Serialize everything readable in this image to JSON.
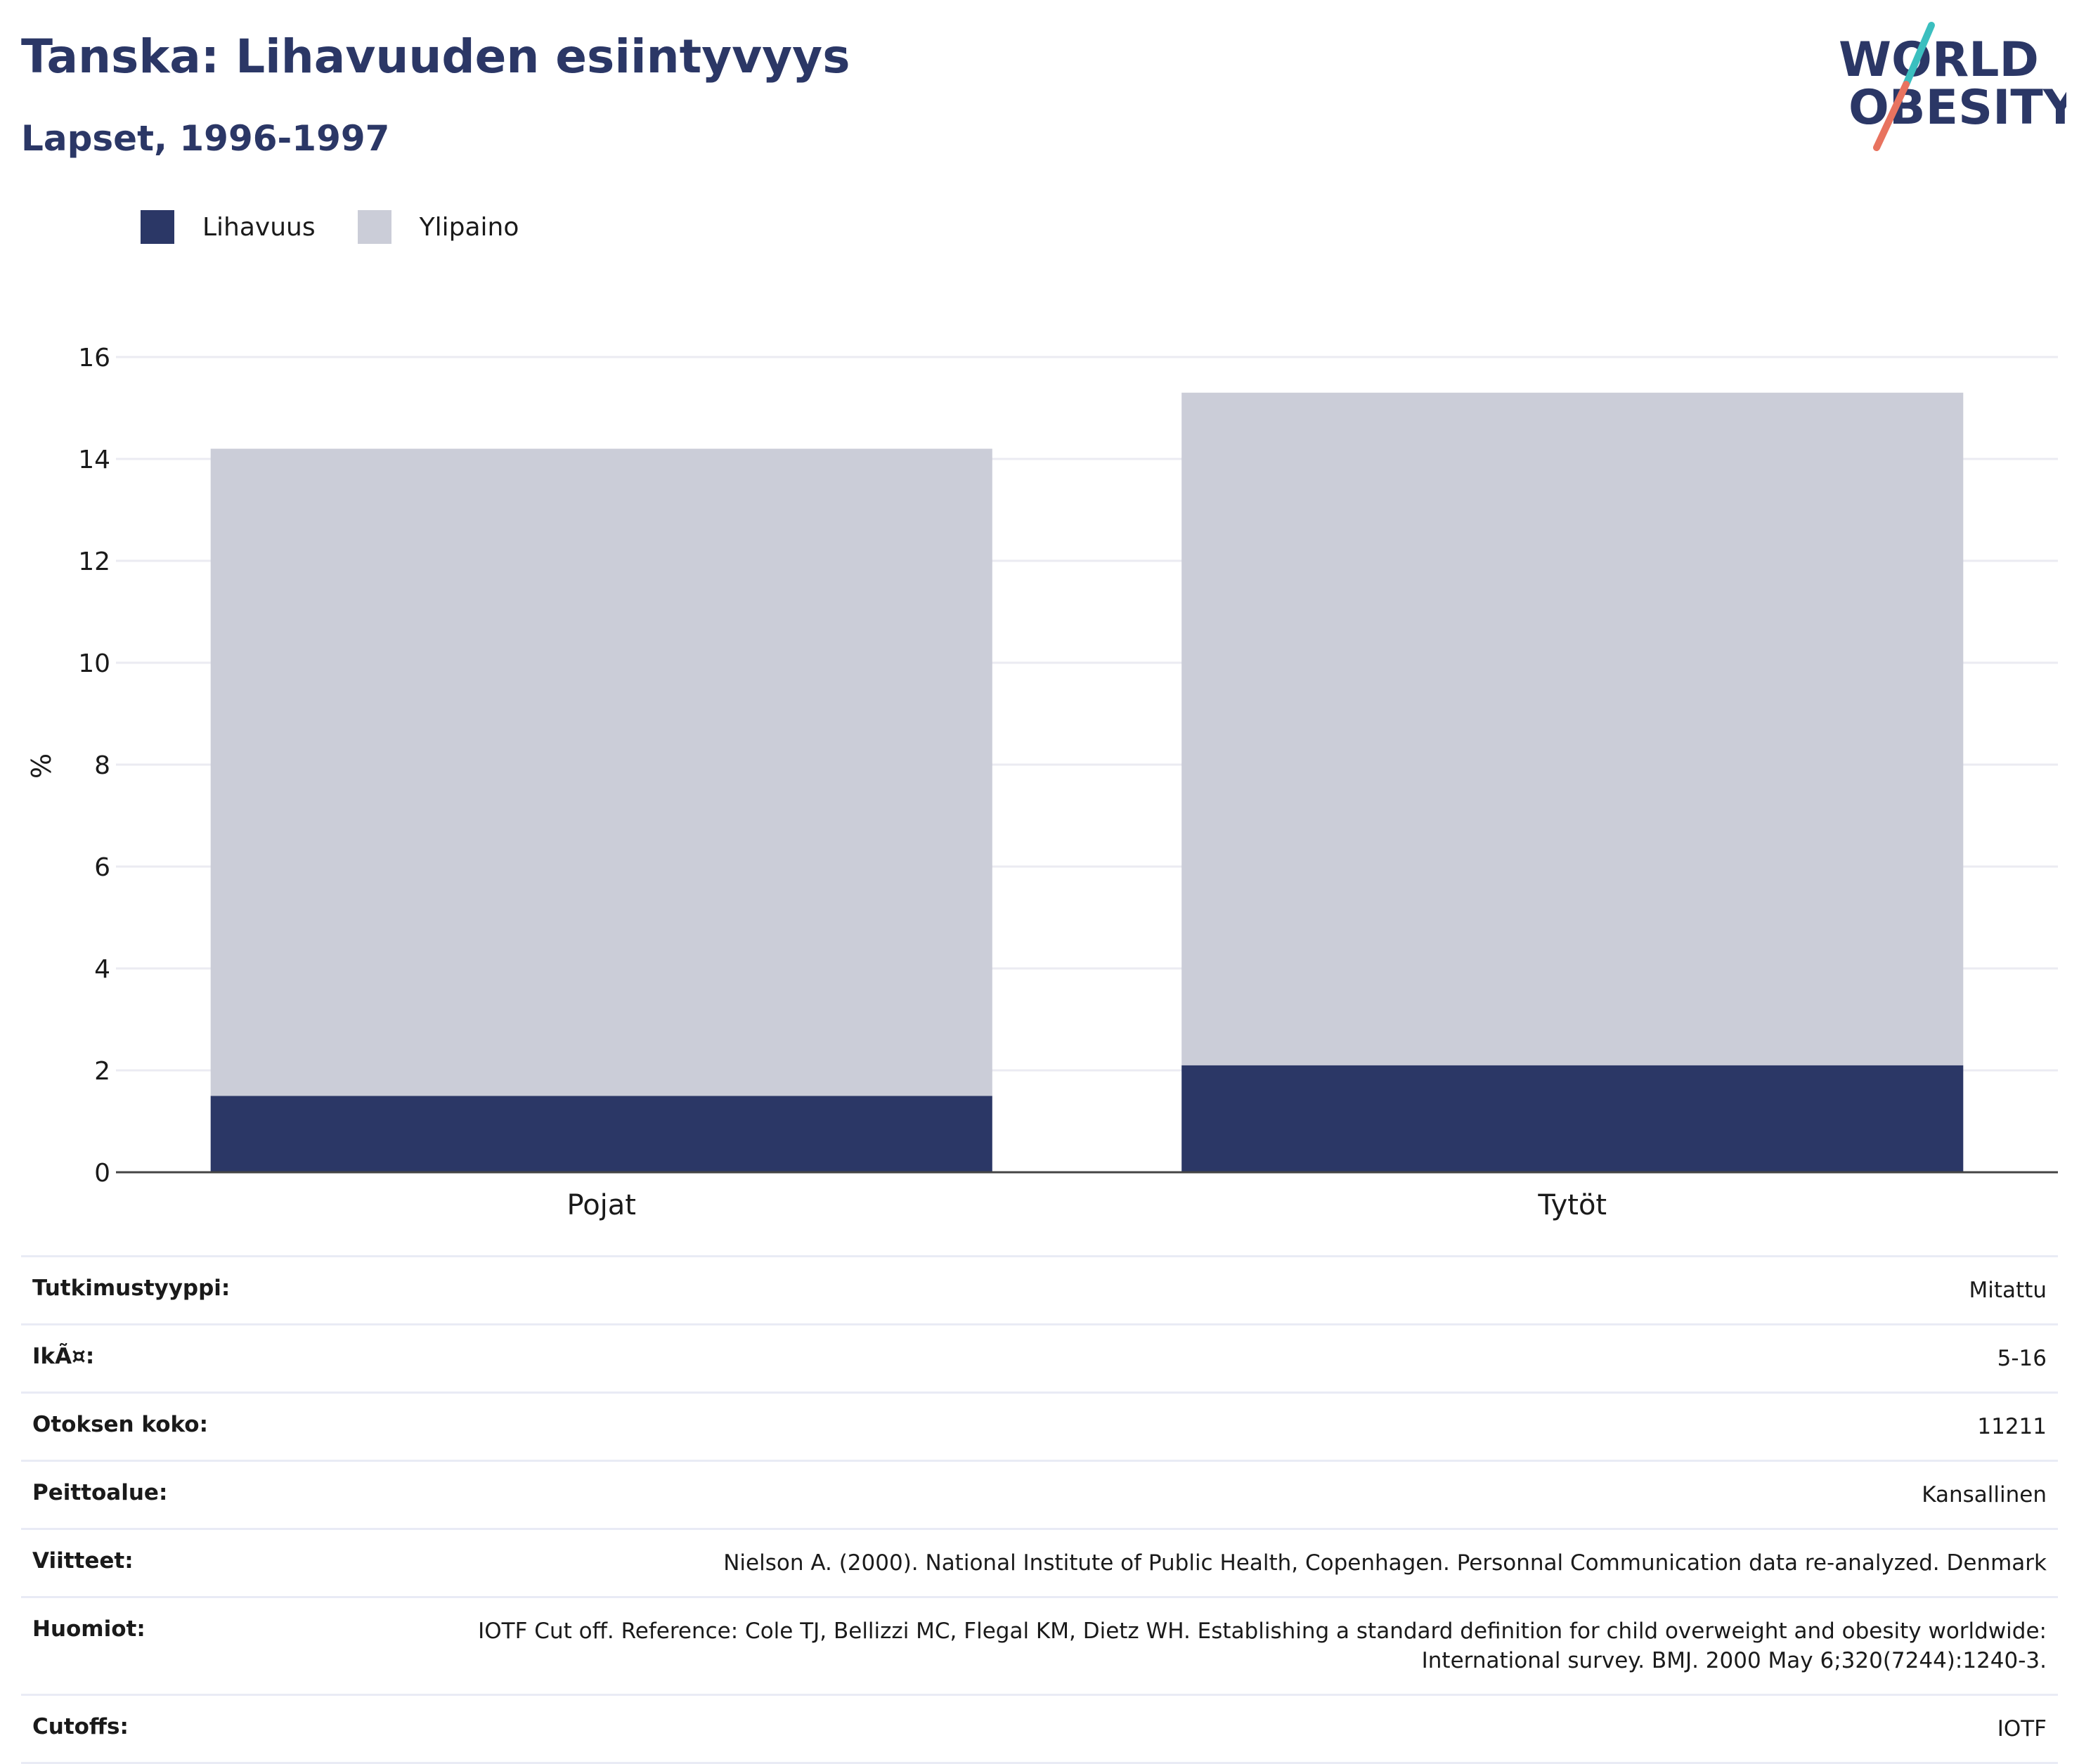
{
  "header": {
    "title": "Tanska: Lihavuuden esiintyvyys",
    "subtitle": "Lapset, 1996-1997"
  },
  "logo": {
    "line1": "WORLD",
    "line2": "OBESITY",
    "colors": {
      "navy": "#2b3766",
      "teal": "#3bbfbf",
      "coral": "#e8735f"
    }
  },
  "legend": [
    {
      "label": "Lihavuus",
      "color": "#2b3766"
    },
    {
      "label": "Ylipaino",
      "color": "#cbcdd8"
    }
  ],
  "chart_data": {
    "type": "bar",
    "stacked": true,
    "categories": [
      "Pojat",
      "Tytöt"
    ],
    "series": [
      {
        "name": "Lihavuus",
        "values": [
          1.5,
          2.1
        ],
        "color": "#2b3766"
      },
      {
        "name": "Ylipaino",
        "values": [
          12.7,
          13.2
        ],
        "color": "#cbcdd8"
      }
    ],
    "ylabel": "%",
    "ylim": [
      0,
      16
    ],
    "yticks": [
      0,
      2,
      4,
      6,
      8,
      10,
      12,
      14,
      16
    ],
    "grid": true,
    "legend_position": "top-left"
  },
  "info": [
    {
      "label": "Tutkimustyyppi:",
      "value": "Mitattu"
    },
    {
      "label": "IkÃ¤:",
      "value": "5-16"
    },
    {
      "label": "Otoksen koko:",
      "value": "11211"
    },
    {
      "label": "Peittoalue:",
      "value": "Kansallinen"
    },
    {
      "label": "Viitteet:",
      "value": "Nielson A. (2000). National Institute of Public Health, Copenhagen. Personnal Communication data re-analyzed. Denmark"
    },
    {
      "label": "Huomiot:",
      "value": "IOTF Cut off. Reference: Cole TJ, Bellizzi MC, Flegal KM, Dietz WH. Establishing a standard definition for child overweight and obesity worldwide: International survey. BMJ. 2000 May 6;320(7244):1240-3."
    },
    {
      "label": "Cutoffs:",
      "value": "IOTF"
    }
  ]
}
